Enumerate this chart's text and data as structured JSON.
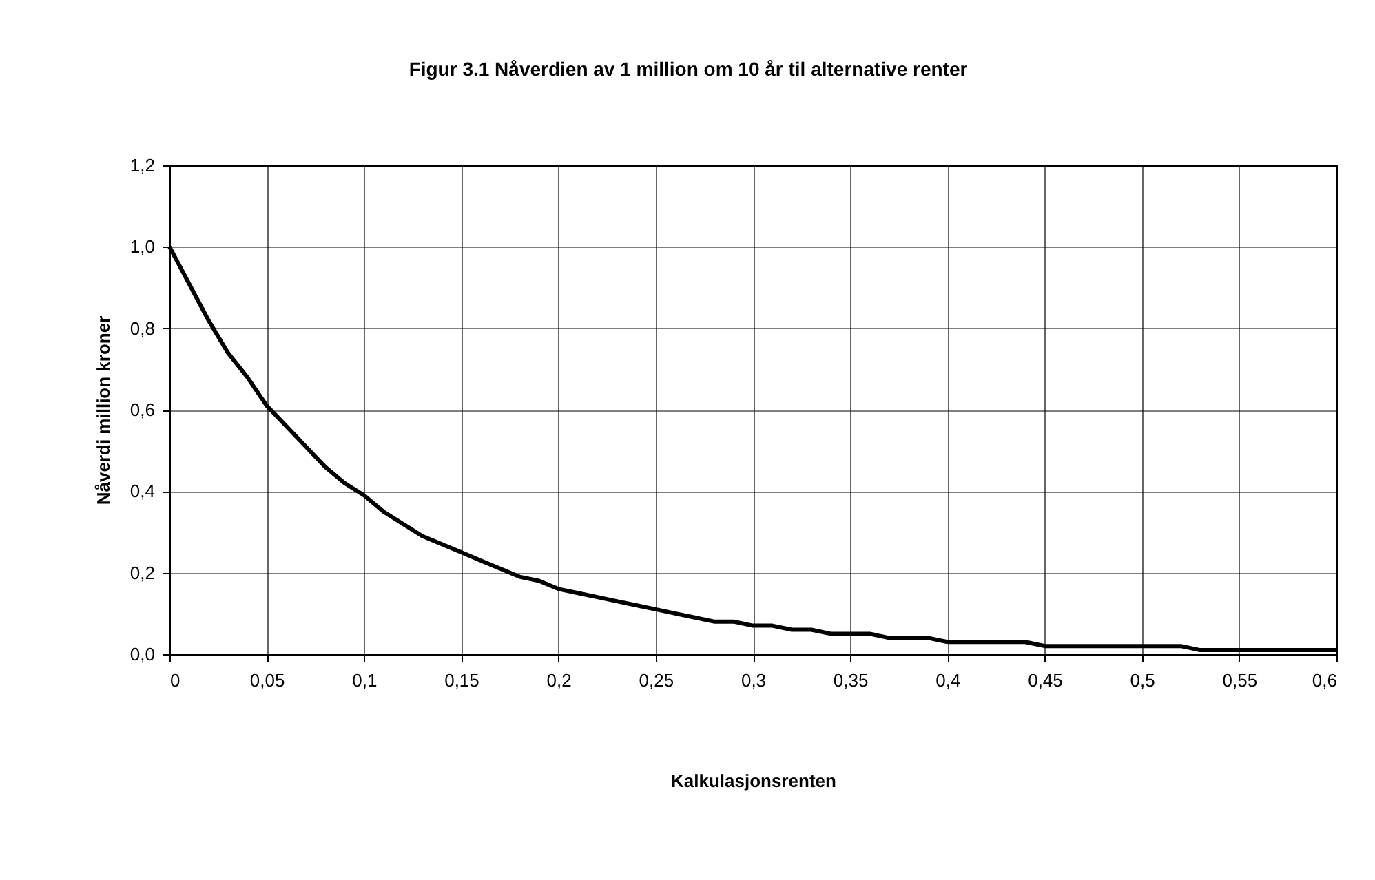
{
  "chart_data": {
    "type": "line",
    "title": "Figur 3.1 Nåverdien av 1 million om 10 år til alternative renter",
    "xlabel": "Kalkulasjonsrenten",
    "ylabel": "Nåverdi million kroner",
    "x": [
      0,
      0.01,
      0.02,
      0.03,
      0.04,
      0.05,
      0.06,
      0.07,
      0.08,
      0.09,
      0.1,
      0.11,
      0.12,
      0.13,
      0.14,
      0.15,
      0.16,
      0.17,
      0.18,
      0.19,
      0.2,
      0.21,
      0.22,
      0.23,
      0.24,
      0.25,
      0.26,
      0.27,
      0.28,
      0.29,
      0.3,
      0.31,
      0.32,
      0.33,
      0.34,
      0.35,
      0.36,
      0.37,
      0.38,
      0.39,
      0.4,
      0.41,
      0.42,
      0.43,
      0.44,
      0.45,
      0.46,
      0.47,
      0.48,
      0.49,
      0.5,
      0.51,
      0.52,
      0.53,
      0.54,
      0.55,
      0.56,
      0.57,
      0.58,
      0.59,
      0.6
    ],
    "series": [
      {
        "color": "#000000",
        "values": [
          1.0,
          0.91,
          0.82,
          0.74,
          0.68,
          0.61,
          0.56,
          0.51,
          0.46,
          0.42,
          0.39,
          0.35,
          0.32,
          0.29,
          0.27,
          0.25,
          0.23,
          0.21,
          0.19,
          0.18,
          0.16,
          0.15,
          0.14,
          0.13,
          0.12,
          0.11,
          0.1,
          0.09,
          0.08,
          0.08,
          0.07,
          0.07,
          0.06,
          0.06,
          0.05,
          0.05,
          0.05,
          0.04,
          0.04,
          0.04,
          0.03,
          0.03,
          0.03,
          0.03,
          0.03,
          0.02,
          0.02,
          0.02,
          0.02,
          0.02,
          0.02,
          0.02,
          0.02,
          0.01,
          0.01,
          0.01,
          0.01,
          0.01,
          0.01,
          0.01,
          0.01
        ]
      }
    ],
    "xlim": [
      0,
      0.6
    ],
    "xticks": [
      0,
      {
        "value": 0.05,
        "label": "0,05"
      },
      {
        "value": 0.1,
        "label": "0,1"
      },
      {
        "value": 0.15,
        "label": "0,15"
      },
      {
        "value": 0.2,
        "label": "0,2"
      },
      {
        "value": 0.25,
        "label": "0,25"
      },
      {
        "value": 0.3,
        "label": "0,3"
      },
      {
        "value": 0.35,
        "label": "0,35"
      },
      {
        "value": 0.4,
        "label": "0,4"
      },
      {
        "value": 0.45,
        "label": "0,45"
      },
      {
        "value": 0.5,
        "label": "0,5"
      },
      {
        "value": 0.55,
        "label": "0,55"
      },
      {
        "value": 0.6,
        "label": "0,6"
      }
    ],
    "ylim": [
      0,
      1.2
    ],
    "yticks": [
      {
        "value": 0,
        "label": "0,0"
      },
      {
        "value": 0.2,
        "label": "0,2"
      },
      {
        "value": 0.4,
        "label": "0,4"
      },
      {
        "value": 0.6,
        "label": "0,6"
      },
      {
        "value": 0.8,
        "label": "0,8"
      },
      {
        "value": 1,
        "label": "1,0"
      },
      {
        "value": 1.2,
        "label": "1,2"
      }
    ],
    "grid": true,
    "marker": "none",
    "line_style": "solid"
  }
}
